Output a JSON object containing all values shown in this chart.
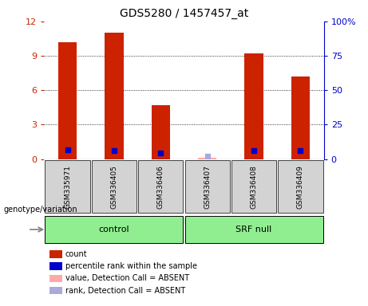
{
  "title": "GDS5280 / 1457457_at",
  "samples": [
    "GSM335971",
    "GSM336405",
    "GSM336406",
    "GSM336407",
    "GSM336408",
    "GSM336409"
  ],
  "bar_values": [
    10.2,
    11.0,
    4.7,
    0.15,
    9.2,
    7.2
  ],
  "bar_absent": [
    false,
    false,
    false,
    true,
    false,
    false
  ],
  "percentile_values": [
    6.5,
    6.2,
    4.6,
    2.0,
    6.1,
    6.0
  ],
  "percentile_absent": [
    false,
    false,
    false,
    true,
    false,
    false
  ],
  "ylim_left": [
    0,
    12
  ],
  "ylim_right": [
    0,
    100
  ],
  "yticks_left": [
    0,
    3,
    6,
    9,
    12
  ],
  "ytick_labels_left": [
    "0",
    "3",
    "6",
    "9",
    "12"
  ],
  "ytick_labels_right": [
    "0",
    "25",
    "50",
    "75",
    "100%"
  ],
  "bar_color": "#CC2200",
  "bar_absent_color": "#FFAAAA",
  "dot_color": "#0000CC",
  "dot_absent_color": "#AAAADD",
  "bar_width": 0.4,
  "groups": [
    {
      "name": "control",
      "start": 0,
      "end": 2
    },
    {
      "name": "SRF null",
      "start": 3,
      "end": 5
    }
  ],
  "group_color": "#90EE90",
  "legend_items": [
    {
      "label": "count",
      "color": "#CC2200"
    },
    {
      "label": "percentile rank within the sample",
      "color": "#0000CC"
    },
    {
      "label": "value, Detection Call = ABSENT",
      "color": "#FFAAAA"
    },
    {
      "label": "rank, Detection Call = ABSENT",
      "color": "#AAAADD"
    }
  ],
  "genotype_label": "genotype/variation"
}
